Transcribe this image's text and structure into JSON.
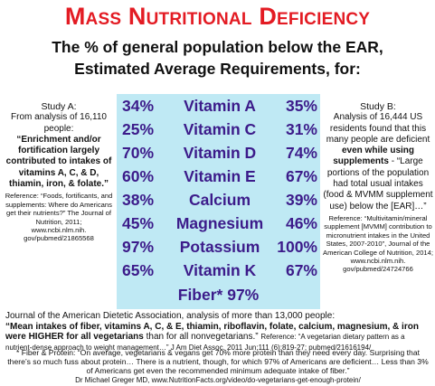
{
  "title": "Mass Nutritional Deficiency",
  "subtitle": {
    "line1": "The % of general population below the EAR,",
    "line2": "Estimated Average Requirements, for:"
  },
  "study_a": {
    "heading": "Study A:",
    "intro": "From analysis of 16,110 people:",
    "bold": "“Enrichment and/or fortification largely contributed to intakes of vitamins A, C, & D, thiamin, iron, & folate.”",
    "reference": "Reference: “Foods, fortificants, and supplements: Where do Americans get their nutrients?” The Journal of Nutrition, 2011;",
    "url": "www.ncbi.nlm.nih. gov/pubmed/21865568"
  },
  "study_b": {
    "heading": "Study B:",
    "intro": "Analysis of 16,444 US residents found that this many people are deficient",
    "bold": "even while using supplements",
    "quote": "- “Large portions of the population had total usual intakes (food & MVMM supplement use) below the [EAR]…”",
    "reference": "Reference: “Multivitamin/mineral supplement [MVMM] contribution to micronutrient intakes in the United States, 2007-2010”, Journal of the American College of Nutrition, 2014;",
    "url": "www.ncbi.nlm.nih. gov/pubmed/24724766"
  },
  "nutrients": [
    {
      "a": "34%",
      "name": "Vitamin A",
      "b": "35%"
    },
    {
      "a": "25%",
      "name": "Vitamin C",
      "b": "31%"
    },
    {
      "a": "70%",
      "name": "Vitamin D",
      "b": "74%"
    },
    {
      "a": "60%",
      "name": "Vitamin E",
      "b": "67%"
    },
    {
      "a": "38%",
      "name": "Calcium",
      "b": "39%"
    },
    {
      "a": "45%",
      "name": "Magnesium",
      "b": "46%"
    },
    {
      "a": "97%",
      "name": "Potassium",
      "b": "100%"
    },
    {
      "a": "65%",
      "name": "Vitamin K",
      "b": "67%"
    }
  ],
  "fiber": "Fiber* 97%",
  "jada": {
    "intro": "Journal of the American Dietetic Association, analysis of more than 13,000 people:",
    "bold": "“Mean intakes of fiber, vitamins A, C, & E, thiamin, riboflavin, folate, calcium, magnesium, & iron were HIGHER for all vegetarians",
    "tail": "than for all nonvegetarians.”",
    "reference": "Reference: “A vegetarian dietary pattern as a nutrient-dense approach to weight management…” J Am Diet Assoc. 2011 Jun;111 (6):819-27; pubmed/21616194/"
  },
  "footer": {
    "text": "* Fiber & Protein: “On average, vegetarians & vegans get 70% more protein than they need every day. Surprising that there’s so much fuss about protein… There is a nutrient, though, for which 97% of Americans are deficient… Less than 3% of Americans get even the recommended minimum adequate intake of fiber.”",
    "credit": "Dr Michael Greger MD, www.NutritionFacts.org/video/do-vegetarians-get-enough-protein/"
  },
  "colors": {
    "title": "#e31b23",
    "table_bg": "#bfe9f4",
    "table_text": "#3c1b8a"
  }
}
